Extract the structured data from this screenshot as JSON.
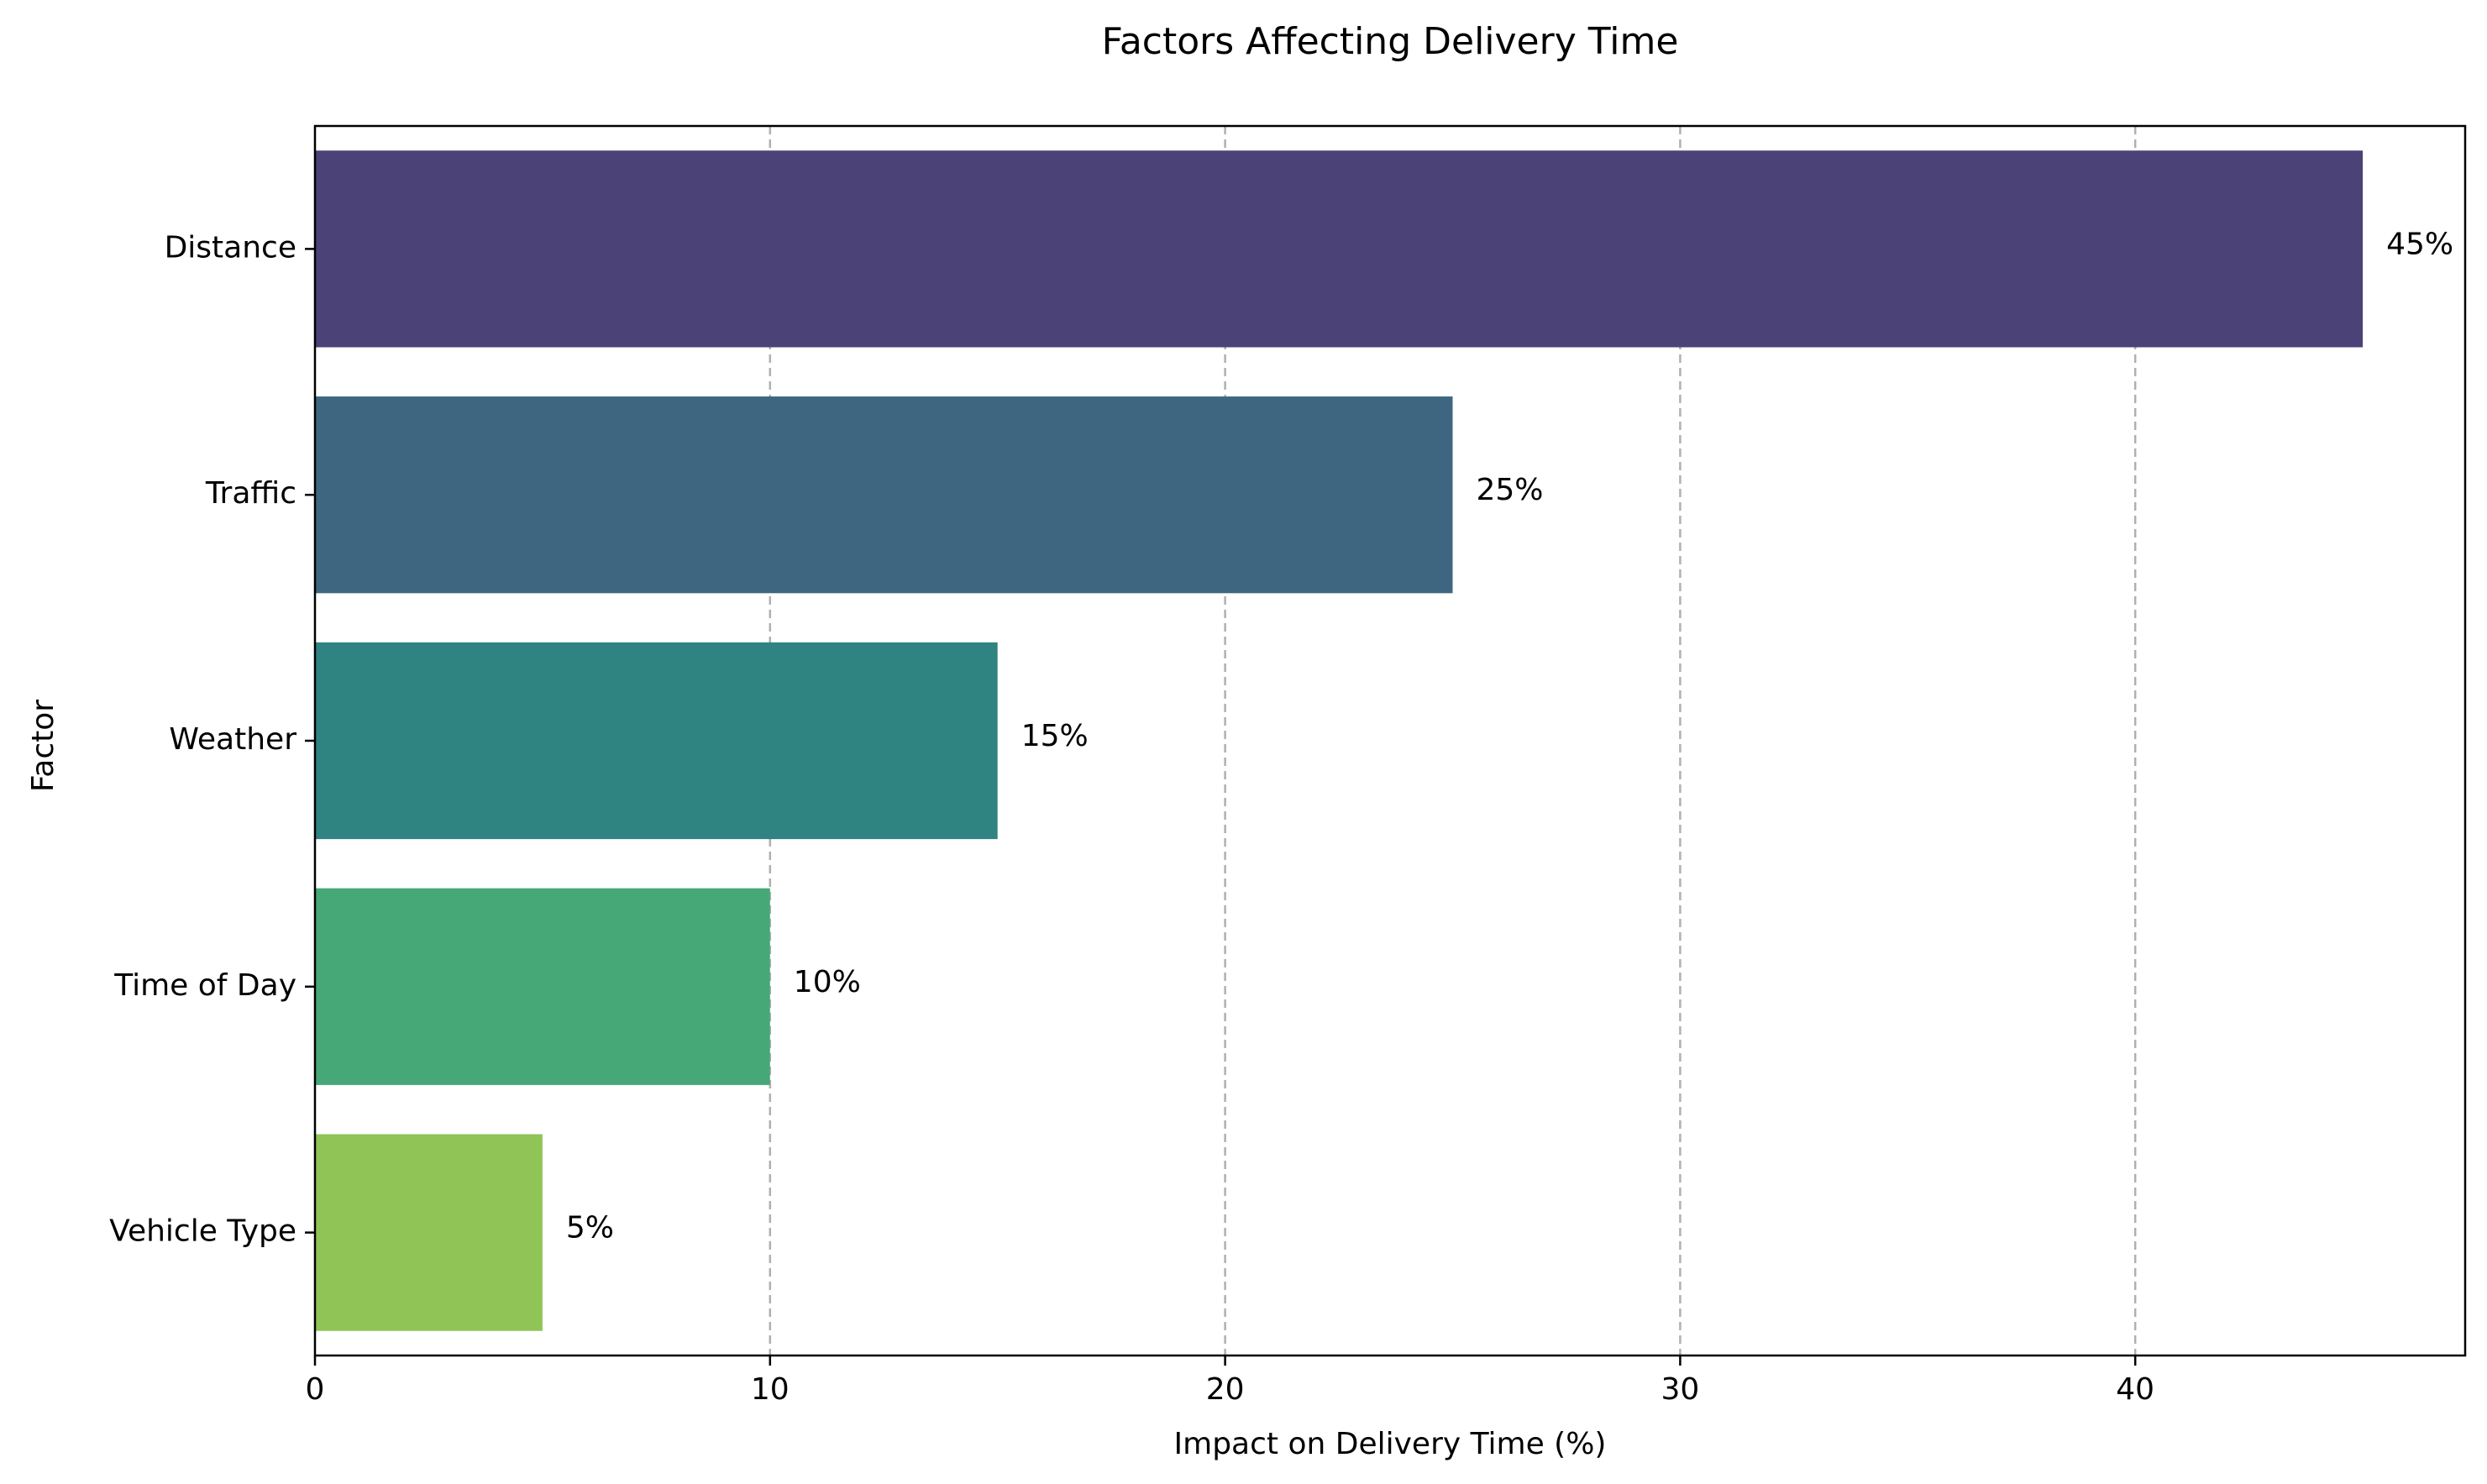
{
  "chart_data": {
    "type": "bar",
    "orientation": "horizontal",
    "title": "Factors Affecting Delivery Time",
    "xlabel": "Impact on Delivery Time (%)",
    "ylabel": "Factor",
    "categories": [
      "Distance",
      "Traffic",
      "Weather",
      "Time of Day",
      "Vehicle Type"
    ],
    "values": [
      45,
      25,
      15,
      10,
      5
    ],
    "value_labels": [
      "45%",
      "25%",
      "15%",
      "10%",
      "5%"
    ],
    "xlim": [
      0,
      47.25
    ],
    "xticks": [
      0,
      10,
      20,
      30,
      40
    ],
    "xtick_labels": [
      "0",
      "10",
      "20",
      "30",
      "40"
    ],
    "grid": {
      "x": true,
      "y": false,
      "style": "dashed"
    },
    "colors": [
      "#4b4278",
      "#3e6680",
      "#2f8380",
      "#47a877",
      "#90c457"
    ]
  }
}
